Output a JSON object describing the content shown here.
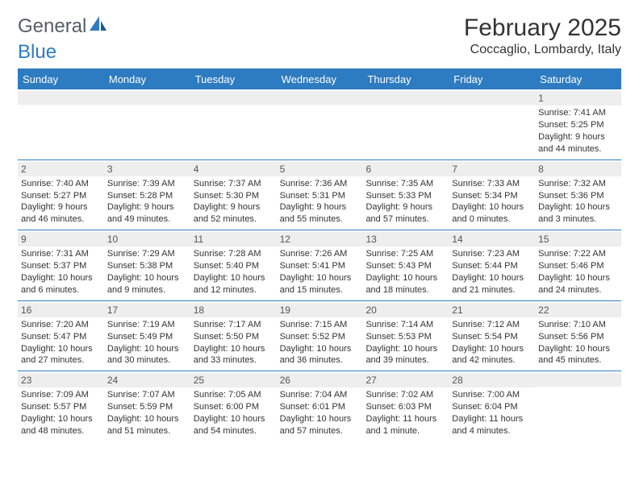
{
  "branding": {
    "logo_text_1": "General",
    "logo_text_2": "Blue",
    "logo_color_gray": "#555d66",
    "logo_color_blue": "#2d7bc0"
  },
  "header": {
    "month_title": "February 2025",
    "location": "Coccaglio, Lombardy, Italy"
  },
  "colors": {
    "header_bar": "#2d7bc0",
    "row_divider": "#2d7bc0",
    "daynum_bg": "#eeeeee",
    "text": "#333333",
    "background": "#ffffff"
  },
  "fonts": {
    "month_title_size": 30,
    "location_size": 16,
    "dayhead_size": 13,
    "cell_size": 11
  },
  "day_names": [
    "Sunday",
    "Monday",
    "Tuesday",
    "Wednesday",
    "Thursday",
    "Friday",
    "Saturday"
  ],
  "weeks": [
    [
      {
        "blank": true
      },
      {
        "blank": true
      },
      {
        "blank": true
      },
      {
        "blank": true
      },
      {
        "blank": true
      },
      {
        "blank": true
      },
      {
        "day": "1",
        "sunrise": "Sunrise: 7:41 AM",
        "sunset": "Sunset: 5:25 PM",
        "daylight": "Daylight: 9 hours and 44 minutes."
      }
    ],
    [
      {
        "day": "2",
        "sunrise": "Sunrise: 7:40 AM",
        "sunset": "Sunset: 5:27 PM",
        "daylight": "Daylight: 9 hours and 46 minutes."
      },
      {
        "day": "3",
        "sunrise": "Sunrise: 7:39 AM",
        "sunset": "Sunset: 5:28 PM",
        "daylight": "Daylight: 9 hours and 49 minutes."
      },
      {
        "day": "4",
        "sunrise": "Sunrise: 7:37 AM",
        "sunset": "Sunset: 5:30 PM",
        "daylight": "Daylight: 9 hours and 52 minutes."
      },
      {
        "day": "5",
        "sunrise": "Sunrise: 7:36 AM",
        "sunset": "Sunset: 5:31 PM",
        "daylight": "Daylight: 9 hours and 55 minutes."
      },
      {
        "day": "6",
        "sunrise": "Sunrise: 7:35 AM",
        "sunset": "Sunset: 5:33 PM",
        "daylight": "Daylight: 9 hours and 57 minutes."
      },
      {
        "day": "7",
        "sunrise": "Sunrise: 7:33 AM",
        "sunset": "Sunset: 5:34 PM",
        "daylight": "Daylight: 10 hours and 0 minutes."
      },
      {
        "day": "8",
        "sunrise": "Sunrise: 7:32 AM",
        "sunset": "Sunset: 5:36 PM",
        "daylight": "Daylight: 10 hours and 3 minutes."
      }
    ],
    [
      {
        "day": "9",
        "sunrise": "Sunrise: 7:31 AM",
        "sunset": "Sunset: 5:37 PM",
        "daylight": "Daylight: 10 hours and 6 minutes."
      },
      {
        "day": "10",
        "sunrise": "Sunrise: 7:29 AM",
        "sunset": "Sunset: 5:38 PM",
        "daylight": "Daylight: 10 hours and 9 minutes."
      },
      {
        "day": "11",
        "sunrise": "Sunrise: 7:28 AM",
        "sunset": "Sunset: 5:40 PM",
        "daylight": "Daylight: 10 hours and 12 minutes."
      },
      {
        "day": "12",
        "sunrise": "Sunrise: 7:26 AM",
        "sunset": "Sunset: 5:41 PM",
        "daylight": "Daylight: 10 hours and 15 minutes."
      },
      {
        "day": "13",
        "sunrise": "Sunrise: 7:25 AM",
        "sunset": "Sunset: 5:43 PM",
        "daylight": "Daylight: 10 hours and 18 minutes."
      },
      {
        "day": "14",
        "sunrise": "Sunrise: 7:23 AM",
        "sunset": "Sunset: 5:44 PM",
        "daylight": "Daylight: 10 hours and 21 minutes."
      },
      {
        "day": "15",
        "sunrise": "Sunrise: 7:22 AM",
        "sunset": "Sunset: 5:46 PM",
        "daylight": "Daylight: 10 hours and 24 minutes."
      }
    ],
    [
      {
        "day": "16",
        "sunrise": "Sunrise: 7:20 AM",
        "sunset": "Sunset: 5:47 PM",
        "daylight": "Daylight: 10 hours and 27 minutes."
      },
      {
        "day": "17",
        "sunrise": "Sunrise: 7:19 AM",
        "sunset": "Sunset: 5:49 PM",
        "daylight": "Daylight: 10 hours and 30 minutes."
      },
      {
        "day": "18",
        "sunrise": "Sunrise: 7:17 AM",
        "sunset": "Sunset: 5:50 PM",
        "daylight": "Daylight: 10 hours and 33 minutes."
      },
      {
        "day": "19",
        "sunrise": "Sunrise: 7:15 AM",
        "sunset": "Sunset: 5:52 PM",
        "daylight": "Daylight: 10 hours and 36 minutes."
      },
      {
        "day": "20",
        "sunrise": "Sunrise: 7:14 AM",
        "sunset": "Sunset: 5:53 PM",
        "daylight": "Daylight: 10 hours and 39 minutes."
      },
      {
        "day": "21",
        "sunrise": "Sunrise: 7:12 AM",
        "sunset": "Sunset: 5:54 PM",
        "daylight": "Daylight: 10 hours and 42 minutes."
      },
      {
        "day": "22",
        "sunrise": "Sunrise: 7:10 AM",
        "sunset": "Sunset: 5:56 PM",
        "daylight": "Daylight: 10 hours and 45 minutes."
      }
    ],
    [
      {
        "day": "23",
        "sunrise": "Sunrise: 7:09 AM",
        "sunset": "Sunset: 5:57 PM",
        "daylight": "Daylight: 10 hours and 48 minutes."
      },
      {
        "day": "24",
        "sunrise": "Sunrise: 7:07 AM",
        "sunset": "Sunset: 5:59 PM",
        "daylight": "Daylight: 10 hours and 51 minutes."
      },
      {
        "day": "25",
        "sunrise": "Sunrise: 7:05 AM",
        "sunset": "Sunset: 6:00 PM",
        "daylight": "Daylight: 10 hours and 54 minutes."
      },
      {
        "day": "26",
        "sunrise": "Sunrise: 7:04 AM",
        "sunset": "Sunset: 6:01 PM",
        "daylight": "Daylight: 10 hours and 57 minutes."
      },
      {
        "day": "27",
        "sunrise": "Sunrise: 7:02 AM",
        "sunset": "Sunset: 6:03 PM",
        "daylight": "Daylight: 11 hours and 1 minute."
      },
      {
        "day": "28",
        "sunrise": "Sunrise: 7:00 AM",
        "sunset": "Sunset: 6:04 PM",
        "daylight": "Daylight: 11 hours and 4 minutes."
      },
      {
        "blank": true
      }
    ]
  ]
}
